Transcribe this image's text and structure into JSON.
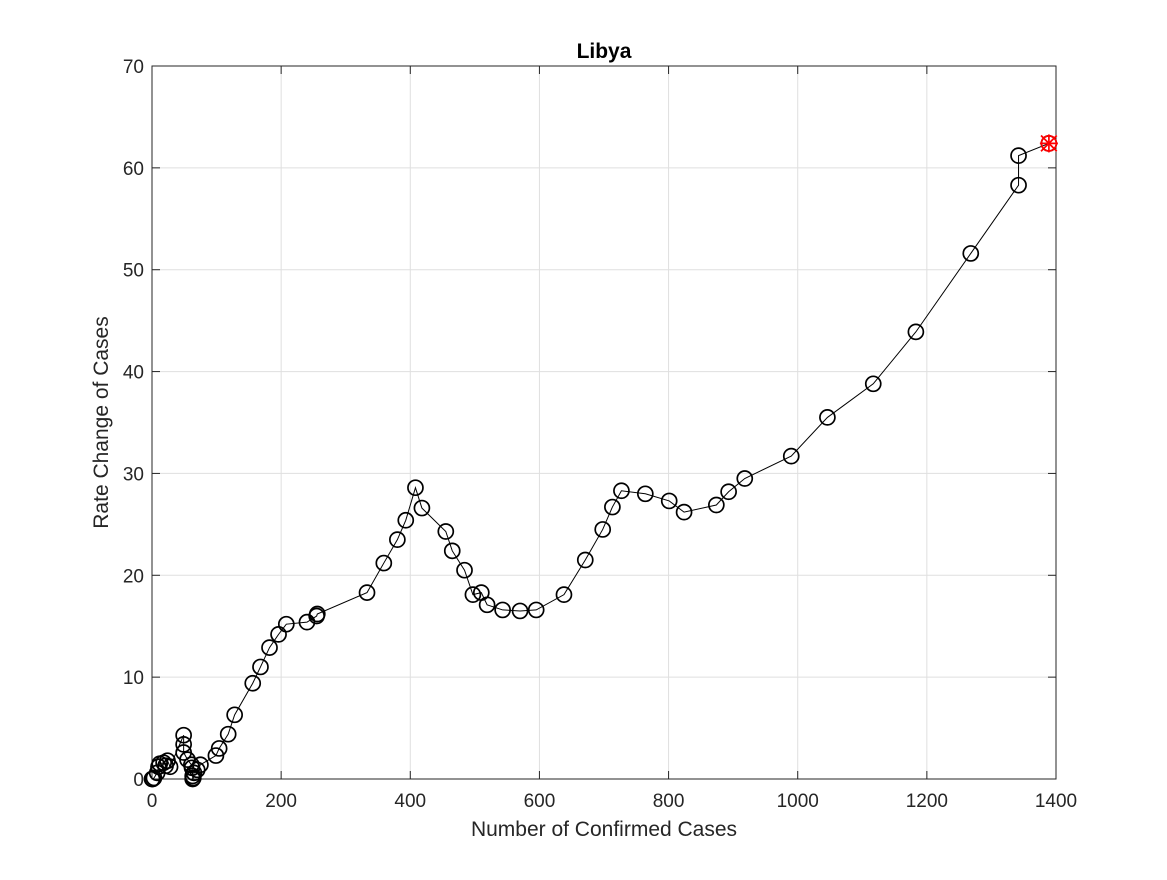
{
  "chart_data": {
    "type": "scatter",
    "title": "Libya",
    "xlabel": "Number of Confirmed Cases",
    "ylabel": "Rate Change of Cases",
    "xlim": [
      0,
      1400
    ],
    "ylim": [
      0,
      70
    ],
    "xticks": [
      0,
      200,
      400,
      600,
      800,
      1000,
      1200,
      1400
    ],
    "yticks": [
      0,
      10,
      20,
      30,
      40,
      50,
      60,
      70
    ],
    "xtick_labels": [
      "0",
      "200",
      "400",
      "600",
      "800",
      "1000",
      "1200",
      "1400"
    ],
    "ytick_labels": [
      "0",
      "10",
      "20",
      "30",
      "40",
      "50",
      "60",
      "70"
    ],
    "grid": true,
    "series": [
      {
        "marker": "circle",
        "line": true,
        "color": "#000000",
        "points": [
          [
            0,
            0
          ],
          [
            1,
            0
          ],
          [
            3,
            0.1
          ],
          [
            8,
            0.6
          ],
          [
            10,
            1.2
          ],
          [
            12,
            1.5
          ],
          [
            18,
            1.6
          ],
          [
            21,
            1.3
          ],
          [
            24,
            1.8
          ],
          [
            28,
            1.2
          ],
          [
            49,
            4.3
          ],
          [
            49,
            3.4
          ],
          [
            49,
            2.6
          ],
          [
            55,
            1.9
          ],
          [
            61,
            1.4
          ],
          [
            62,
            1.1
          ],
          [
            63,
            0.3
          ],
          [
            63,
            0
          ],
          [
            64,
            0.1
          ],
          [
            65,
            0.6
          ],
          [
            70,
            0.9
          ],
          [
            75,
            1.4
          ],
          [
            99,
            2.3
          ],
          [
            104,
            3.0
          ],
          [
            118,
            4.4
          ],
          [
            128,
            6.3
          ],
          [
            156,
            9.4
          ],
          [
            168,
            11.0
          ],
          [
            182,
            12.9
          ],
          [
            196,
            14.2
          ],
          [
            208,
            15.2
          ],
          [
            240,
            15.4
          ],
          [
            255,
            16.0
          ],
          [
            256,
            16.2
          ],
          [
            333,
            18.3
          ],
          [
            359,
            21.2
          ],
          [
            380,
            23.5
          ],
          [
            393,
            25.4
          ],
          [
            408,
            28.6
          ],
          [
            418,
            26.6
          ],
          [
            455,
            24.3
          ],
          [
            465,
            22.4
          ],
          [
            484,
            20.5
          ],
          [
            497,
            18.1
          ],
          [
            510,
            18.3
          ],
          [
            519,
            17.1
          ],
          [
            543,
            16.6
          ],
          [
            570,
            16.5
          ],
          [
            595,
            16.6
          ],
          [
            638,
            18.1
          ],
          [
            671,
            21.5
          ],
          [
            698,
            24.5
          ],
          [
            713,
            26.7
          ],
          [
            727,
            28.3
          ],
          [
            764,
            28.0
          ],
          [
            801,
            27.3
          ],
          [
            824,
            26.2
          ],
          [
            874,
            26.9
          ],
          [
            893,
            28.2
          ],
          [
            918,
            29.5
          ],
          [
            990,
            31.7
          ],
          [
            1046,
            35.5
          ],
          [
            1117,
            38.8
          ],
          [
            1183,
            43.9
          ],
          [
            1268,
            51.6
          ],
          [
            1342,
            58.3
          ],
          [
            1342,
            61.2
          ],
          [
            1389,
            62.4
          ]
        ]
      }
    ],
    "highlight_point": {
      "x": 1389,
      "y": 62.4,
      "marker": "asterisk-x-circle",
      "color": "#ff0000"
    }
  }
}
